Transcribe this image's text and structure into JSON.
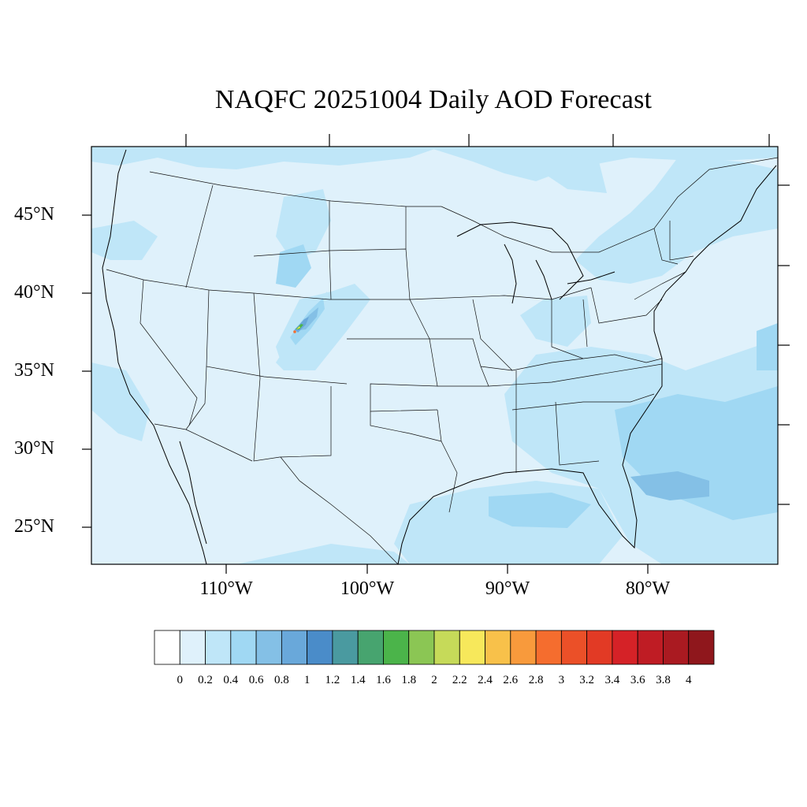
{
  "title": "NAQFC 20251004 Daily AOD Forecast",
  "axes": {
    "lat_labels": [
      "45°N",
      "40°N",
      "35°N",
      "30°N",
      "25°N"
    ],
    "lon_labels": [
      "110°W",
      "100°W",
      "90°W",
      "80°W"
    ]
  },
  "colorbar": {
    "labels": [
      "0",
      "0.2",
      "0.4",
      "0.6",
      "0.8",
      "1",
      "1.2",
      "1.4",
      "1.6",
      "1.8",
      "2",
      "2.2",
      "2.4",
      "2.6",
      "2.8",
      "3",
      "3.2",
      "3.4",
      "3.6",
      "3.8",
      "4"
    ],
    "colors": [
      "#ffffff",
      "#dff1fb",
      "#bfe6f8",
      "#a0d8f3",
      "#84c0e6",
      "#69a8da",
      "#4a8cc9",
      "#4a9aa0",
      "#47a46f",
      "#4bb44a",
      "#8bc654",
      "#c6da59",
      "#f7e85b",
      "#f8c14a",
      "#f89a3c",
      "#f56d2e",
      "#eb5028",
      "#e23a25",
      "#d52227",
      "#bf1c24",
      "#aa1a21",
      "#8f171c"
    ]
  },
  "map": {
    "region": "Contiguous United States",
    "background_color": "#dff1fb",
    "plume_location": "Colorado / Wyoming"
  }
}
